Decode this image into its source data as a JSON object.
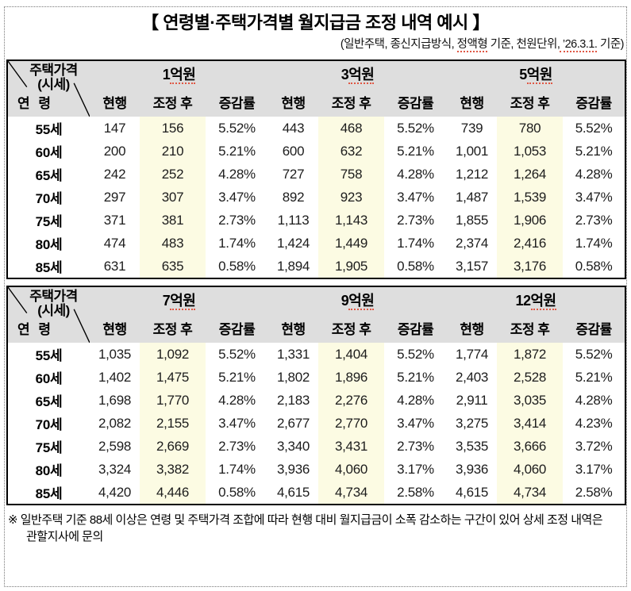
{
  "page": {
    "title": "【 연령별·주택가격별 월지급금 조정 내역 예시 】",
    "subtitle_parts": {
      "p1": "(일반주택, 종신지급방식, ",
      "p2": "정액형",
      "p3": " 기준, 천원단위,",
      "p4": " ’26.3.1.",
      "p5": " 기준)"
    },
    "footnote": "※ 일반주택 기준 88세 이상은 연령 및 주택가격 조합에 따라 현행 대비 월지급금이 소폭 감소하는 구간이 있어 상세 조정 내역은 관할지사에 문의"
  },
  "corner": {
    "line1": "주택가격",
    "line2": "(시세)",
    "bottom": "연 령"
  },
  "subheaders": [
    "현행",
    "조정 후",
    "증감률"
  ],
  "colors": {
    "header_bg": "#dedede",
    "adjusted_bg": "#fcfbe3",
    "squiggle": "#e05744"
  },
  "tables": [
    {
      "groups": [
        {
          "num": "1",
          "unit": "억원"
        },
        {
          "num": "3",
          "unit": "억원"
        },
        {
          "num": "5",
          "unit": "억원"
        }
      ],
      "rows": [
        {
          "age": "55세",
          "cells": [
            "147",
            "156",
            "5.52%",
            "443",
            "468",
            "5.52%",
            "739",
            "780",
            "5.52%"
          ]
        },
        {
          "age": "60세",
          "cells": [
            "200",
            "210",
            "5.21%",
            "600",
            "632",
            "5.21%",
            "1,001",
            "1,053",
            "5.21%"
          ]
        },
        {
          "age": "65세",
          "cells": [
            "242",
            "252",
            "4.28%",
            "727",
            "758",
            "4.28%",
            "1,212",
            "1,264",
            "4.28%"
          ]
        },
        {
          "age": "70세",
          "cells": [
            "297",
            "307",
            "3.47%",
            "892",
            "923",
            "3.47%",
            "1,487",
            "1,539",
            "3.47%"
          ]
        },
        {
          "age": "75세",
          "cells": [
            "371",
            "381",
            "2.73%",
            "1,113",
            "1,143",
            "2.73%",
            "1,855",
            "1,906",
            "2.73%"
          ]
        },
        {
          "age": "80세",
          "cells": [
            "474",
            "483",
            "1.74%",
            "1,424",
            "1,449",
            "1.74%",
            "2,374",
            "2,416",
            "1.74%"
          ]
        },
        {
          "age": "85세",
          "cells": [
            "631",
            "635",
            "0.58%",
            "1,894",
            "1,905",
            "0.58%",
            "3,157",
            "3,176",
            "0.58%"
          ]
        }
      ]
    },
    {
      "groups": [
        {
          "num": "7",
          "unit": "억원"
        },
        {
          "num": "9",
          "unit": "억원"
        },
        {
          "num": "12",
          "unit": "억원"
        }
      ],
      "rows": [
        {
          "age": "55세",
          "cells": [
            "1,035",
            "1,092",
            "5.52%",
            "1,331",
            "1,404",
            "5.52%",
            "1,774",
            "1,872",
            "5.52%"
          ]
        },
        {
          "age": "60세",
          "cells": [
            "1,402",
            "1,475",
            "5.21%",
            "1,802",
            "1,896",
            "5.21%",
            "2,403",
            "2,528",
            "5.21%"
          ]
        },
        {
          "age": "65세",
          "cells": [
            "1,698",
            "1,770",
            "4.28%",
            "2,183",
            "2,276",
            "4.28%",
            "2,911",
            "3,035",
            "4.28%"
          ]
        },
        {
          "age": "70세",
          "cells": [
            "2,082",
            "2,155",
            "3.47%",
            "2,677",
            "2,770",
            "3.47%",
            "3,275",
            "3,414",
            "4.23%"
          ]
        },
        {
          "age": "75세",
          "cells": [
            "2,598",
            "2,669",
            "2.73%",
            "3,340",
            "3,431",
            "2.73%",
            "3,535",
            "3,666",
            "3.72%"
          ]
        },
        {
          "age": "80세",
          "cells": [
            "3,324",
            "3,382",
            "1.74%",
            "3,936",
            "4,060",
            "3.17%",
            "3,936",
            "4,060",
            "3.17%"
          ]
        },
        {
          "age": "85세",
          "cells": [
            "4,420",
            "4,446",
            "0.58%",
            "4,615",
            "4,734",
            "2.58%",
            "4,615",
            "4,734",
            "2.58%"
          ]
        }
      ]
    }
  ]
}
